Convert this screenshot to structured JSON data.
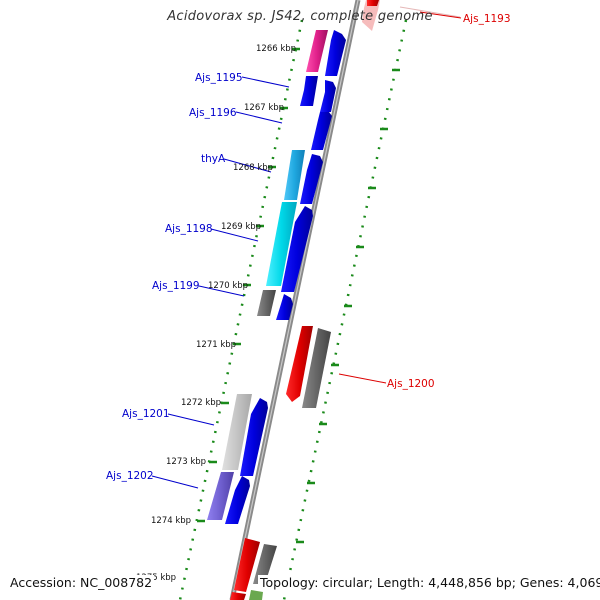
{
  "title": "Acidovorax sp. JS42, complete genome",
  "footer": {
    "accession": "Accession: NC_008782",
    "summary": "Topology: circular; Length: 4,448,856 bp; Genes: 4,069"
  },
  "ruler": {
    "ticks": [
      {
        "label": "1266 kbp"
      },
      {
        "label": "1267 kbp"
      },
      {
        "label": "1268 kbp"
      },
      {
        "label": "1269 kbp"
      },
      {
        "label": "1270 kbp"
      },
      {
        "label": "1271 kbp"
      },
      {
        "label": "1272 kbp"
      },
      {
        "label": "1273 kbp"
      },
      {
        "label": "1274 kbp"
      },
      {
        "label": "1275 kbp"
      }
    ]
  },
  "gene_labels": {
    "left": [
      {
        "text": "Ajs_1195",
        "color": "#0000cc"
      },
      {
        "text": "Ajs_1196",
        "color": "#0000cc"
      },
      {
        "text": "thyA",
        "color": "#0000cc"
      },
      {
        "text": "Ajs_1198",
        "color": "#0000cc"
      },
      {
        "text": "Ajs_1199",
        "color": "#0000cc"
      },
      {
        "text": "Ajs_1201",
        "color": "#0000cc"
      },
      {
        "text": "Ajs_1202",
        "color": "#0000cc"
      }
    ],
    "right": [
      {
        "text": "Ajs_1193",
        "color": "#dd0000"
      },
      {
        "text": "Ajs_1200",
        "color": "#dd0000"
      }
    ]
  },
  "colors": {
    "backbone": "#8a8a8a",
    "dotted_ring": "#1a8a1a",
    "cds_blue": "#0000e6",
    "cds_red": "#ee0000",
    "magenta": "#e0208a",
    "cyan": "#00d8e8",
    "sky": "#20a8e0",
    "dark_gray": "#6a6a6a",
    "light_gray": "#c8c8c8",
    "lavender": "#7060d0"
  }
}
